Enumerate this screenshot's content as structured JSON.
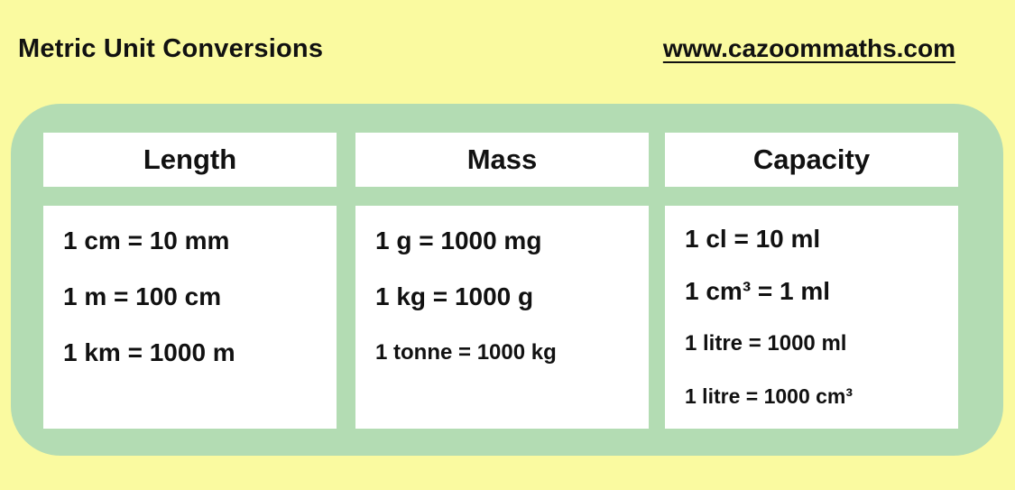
{
  "header": {
    "title": "Metric Unit Conversions",
    "website": "www.cazoommaths.com"
  },
  "columns": [
    {
      "header": "Length",
      "rows": [
        "1 cm = 10 mm",
        "1 m = 100 cm",
        "1 km = 1000 m"
      ]
    },
    {
      "header": "Mass",
      "rows": [
        "1 g = 1000 mg",
        "1 kg = 1000 g",
        "1 tonne = 1000 kg"
      ]
    },
    {
      "header": "Capacity",
      "rows": [
        "1 cl = 10 ml",
        "1 cm³ = 1 ml",
        "1 litre = 1000 ml",
        "1 litre = 1000 cm³"
      ]
    }
  ],
  "colors": {
    "background": "#fafaa0",
    "board_green": "#b3dcb3",
    "card_white": "#ffffff",
    "text": "#111111"
  }
}
